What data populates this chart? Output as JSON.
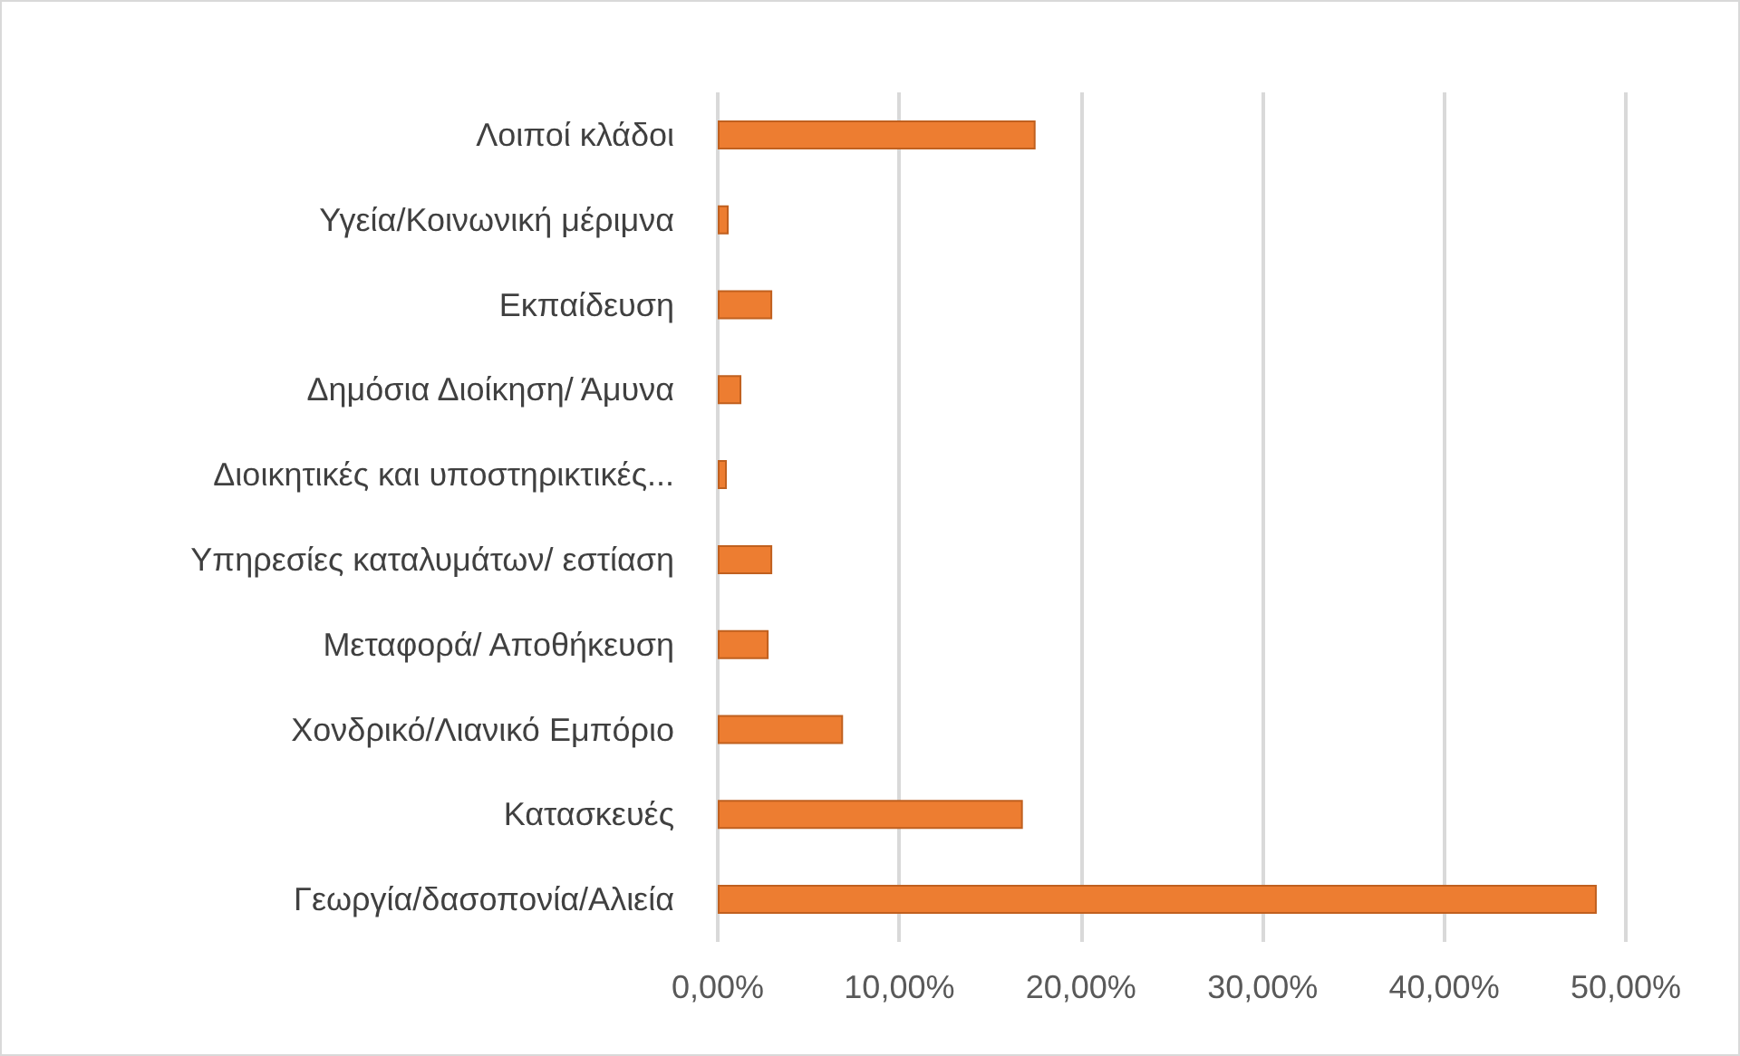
{
  "chart_data": {
    "type": "bar",
    "orientation": "horizontal",
    "categories": [
      "Λοιποί κλάδοι",
      "Υγεία/Κοινωνική μέριμνα",
      "Εκπαίδευση",
      "Δημόσια Διοίκηση/ Άμυνα",
      "Διοικητικές και υποστηρικτικές...",
      "Υπηρεσίες καταλυμάτων/ εστίαση",
      "Μεταφορά/ Αποθήκευση",
      "Χονδρικό/Λιανικό Εμπόριο",
      "Κατασκευές",
      "Γεωργία/δασοπονία/Αλιεία"
    ],
    "values": [
      17.5,
      0.6,
      3.0,
      1.3,
      0.5,
      3.0,
      2.8,
      6.9,
      16.8,
      48.4
    ],
    "color": "#ed7d31",
    "xlim": [
      0,
      50
    ],
    "xticks": [
      {
        "value": 0,
        "label": "0,00%"
      },
      {
        "value": 10,
        "label": "10,00%"
      },
      {
        "value": 20,
        "label": "20,00%"
      },
      {
        "value": 30,
        "label": "30,00%"
      },
      {
        "value": 40,
        "label": "40,00%"
      },
      {
        "value": 50,
        "label": "50,00%"
      }
    ],
    "grid": "x"
  }
}
